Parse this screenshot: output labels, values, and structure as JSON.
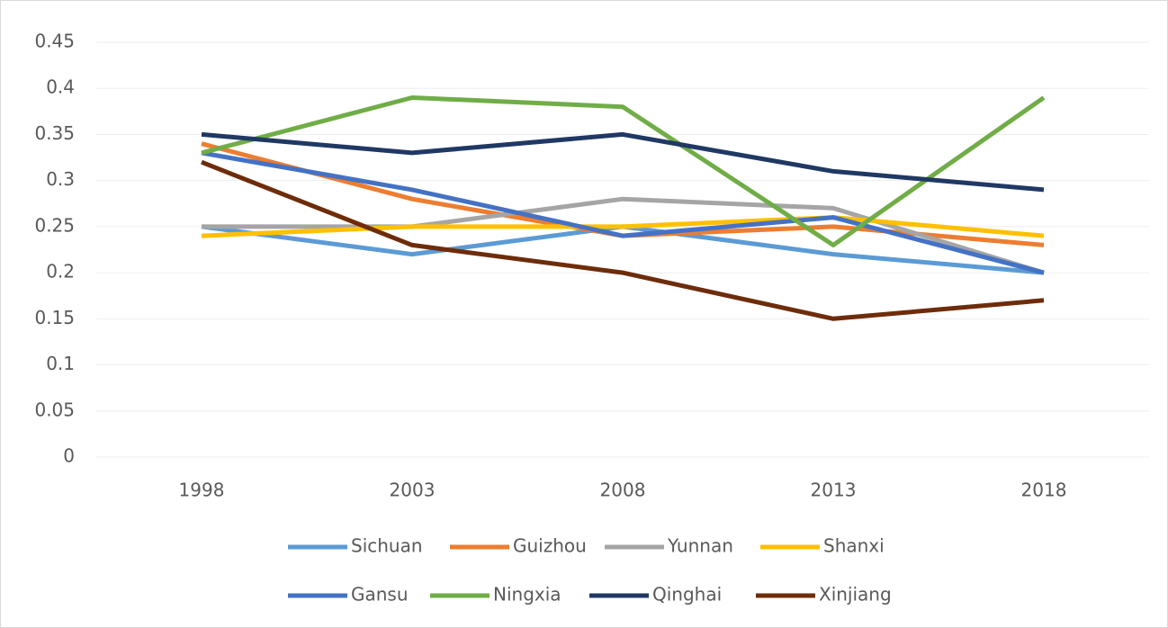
{
  "chart_data": {
    "type": "line",
    "categories": [
      "1998",
      "2003",
      "2008",
      "2013",
      "2018"
    ],
    "series": [
      {
        "name": "Sichuan",
        "color": "#5b9bd5",
        "values": [
          0.25,
          0.22,
          0.25,
          0.22,
          0.2
        ]
      },
      {
        "name": "Guizhou",
        "color": "#ed7d31",
        "values": [
          0.34,
          0.28,
          0.24,
          0.25,
          0.23
        ]
      },
      {
        "name": "Yunnan",
        "color": "#a5a5a5",
        "values": [
          0.25,
          0.25,
          0.28,
          0.27,
          0.2
        ]
      },
      {
        "name": "Shanxi",
        "color": "#ffc000",
        "values": [
          0.24,
          0.25,
          0.25,
          0.26,
          0.24
        ]
      },
      {
        "name": "Gansu",
        "color": "#4472c4",
        "values": [
          0.33,
          0.29,
          0.24,
          0.26,
          0.2
        ]
      },
      {
        "name": "Ningxia",
        "color": "#70ad47",
        "values": [
          0.33,
          0.39,
          0.38,
          0.23,
          0.39
        ]
      },
      {
        "name": "Qinghai",
        "color": "#203864",
        "values": [
          0.35,
          0.33,
          0.35,
          0.31,
          0.29
        ]
      },
      {
        "name": "Xinjiang",
        "color": "#6e2c0a",
        "values": [
          0.32,
          0.23,
          0.2,
          0.15,
          0.17
        ]
      }
    ],
    "ylim": [
      0,
      0.45
    ],
    "yticks": [
      0,
      0.05,
      0.1,
      0.15,
      0.2,
      0.25,
      0.3,
      0.35,
      0.4,
      0.45
    ],
    "grid": true,
    "legend": "bottom"
  }
}
